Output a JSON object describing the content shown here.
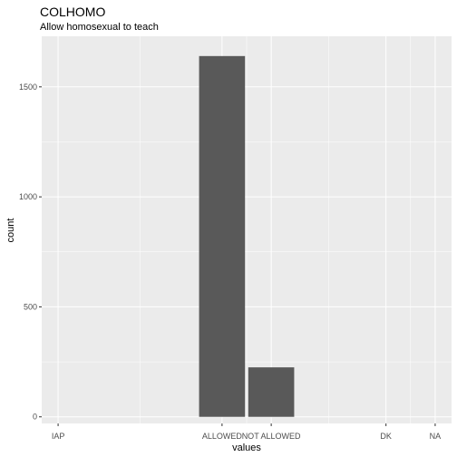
{
  "chart_data": {
    "type": "bar",
    "title": "COLHOMO",
    "subtitle": "Allow homosexual to teach",
    "xlabel": "values",
    "ylabel": "count",
    "categories": [
      "IAP",
      "ALLOWED",
      "NOT ALLOWED",
      "DK",
      "NA"
    ],
    "x_values": [
      0,
      1,
      1.3,
      2,
      2.3
    ],
    "bar_width": 0.28,
    "series": [
      {
        "values": [
          0,
          1640,
          225,
          0,
          0
        ]
      }
    ],
    "ylim": [
      -30,
      1730
    ],
    "yticks": [
      0,
      500,
      1000,
      1500
    ],
    "xlim": [
      -0.1,
      2.4
    ],
    "grid": true,
    "colors": {
      "panel": "#ebebeb",
      "grid": "#ffffff",
      "bar": "#595959"
    }
  }
}
